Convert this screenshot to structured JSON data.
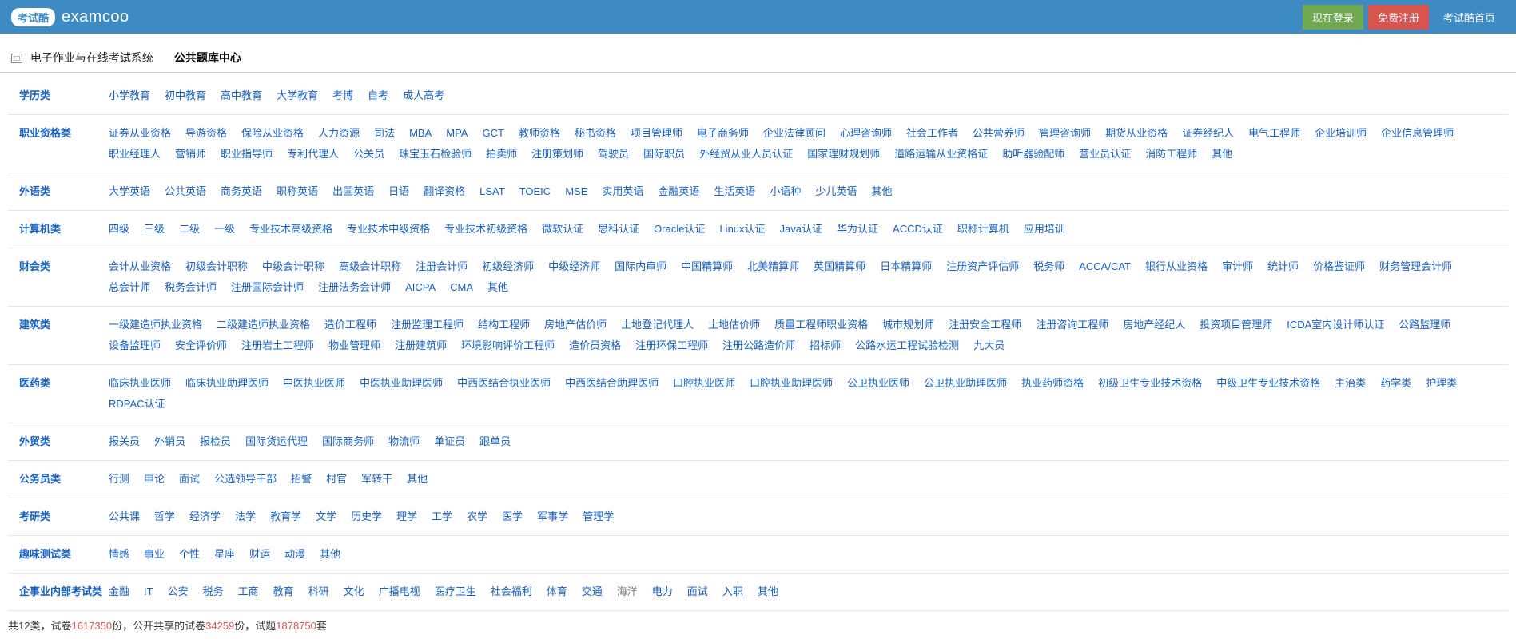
{
  "header": {
    "logo_badge": "考试酷",
    "logo_text": "examcoo",
    "login": "现在登录",
    "register": "免费注册",
    "home": "考试酷首页"
  },
  "tabs": {
    "sys": "电子作业与在线考试系统",
    "center": "公共题库中心"
  },
  "categories": [
    {
      "name": "学历类",
      "items": [
        "小学教育",
        "初中教育",
        "高中教育",
        "大学教育",
        "考博",
        "自考",
        "成人高考"
      ]
    },
    {
      "name": "职业资格类",
      "items": [
        "证券从业资格",
        "导游资格",
        "保险从业资格",
        "人力资源",
        "司法",
        "MBA",
        "MPA",
        "GCT",
        "教师资格",
        "秘书资格",
        "项目管理师",
        "电子商务师",
        "企业法律顾问",
        "心理咨询师",
        "社会工作者",
        "公共营养师",
        "管理咨询师",
        "期货从业资格",
        "证券经纪人",
        "电气工程师",
        "企业培训师",
        "企业信息管理师",
        "职业经理人",
        "营销师",
        "职业指导师",
        "专利代理人",
        "公关员",
        "珠宝玉石检验师",
        "拍卖师",
        "注册策划师",
        "驾驶员",
        "国际职员",
        "外经贸从业人员认证",
        "国家理财规划师",
        "道路运输从业资格证",
        "助听器验配师",
        "营业员认证",
        "消防工程师",
        "其他"
      ]
    },
    {
      "name": "外语类",
      "items": [
        "大学英语",
        "公共英语",
        "商务英语",
        "职称英语",
        "出国英语",
        "日语",
        "翻译资格",
        "LSAT",
        "TOEIC",
        "MSE",
        "实用英语",
        "金融英语",
        "生活英语",
        "小语种",
        "少儿英语",
        "其他"
      ]
    },
    {
      "name": "计算机类",
      "items": [
        "四级",
        "三级",
        "二级",
        "一级",
        "专业技术高级资格",
        "专业技术中级资格",
        "专业技术初级资格",
        "微软认证",
        "思科认证",
        "Oracle认证",
        "Linux认证",
        "Java认证",
        "华为认证",
        "ACCD认证",
        "职称计算机",
        "应用培训"
      ]
    },
    {
      "name": "财会类",
      "items": [
        "会计从业资格",
        "初级会计职称",
        "中级会计职称",
        "高级会计职称",
        "注册会计师",
        "初级经济师",
        "中级经济师",
        "国际内审师",
        "中国精算师",
        "北美精算师",
        "英国精算师",
        "日本精算师",
        "注册资产评估师",
        "税务师",
        "ACCA/CAT",
        "银行从业资格",
        "审计师",
        "统计师",
        "价格鉴证师",
        "财务管理会计师",
        "总会计师",
        "税务会计师",
        "注册国际会计师",
        "注册法务会计师",
        "AICPA",
        "CMA",
        "其他"
      ]
    },
    {
      "name": "建筑类",
      "items": [
        "一级建造师执业资格",
        "二级建造师执业资格",
        "造价工程师",
        "注册监理工程师",
        "结构工程师",
        "房地产估价师",
        "土地登记代理人",
        "土地估价师",
        "质量工程师职业资格",
        "城市规划师",
        "注册安全工程师",
        "注册咨询工程师",
        "房地产经纪人",
        "投资项目管理师",
        "ICDA室内设计师认证",
        "公路监理师",
        "设备监理师",
        "安全评价师",
        "注册岩土工程师",
        "物业管理师",
        "注册建筑师",
        "环境影响评价工程师",
        "造价员资格",
        "注册环保工程师",
        "注册公路造价师",
        "招标师",
        "公路水运工程试验检测",
        "九大员"
      ]
    },
    {
      "name": "医药类",
      "items": [
        "临床执业医师",
        "临床执业助理医师",
        "中医执业医师",
        "中医执业助理医师",
        "中西医结合执业医师",
        "中西医结合助理医师",
        "口腔执业医师",
        "口腔执业助理医师",
        "公卫执业医师",
        "公卫执业助理医师",
        "执业药师资格",
        "初级卫生专业技术资格",
        "中级卫生专业技术资格",
        "主治类",
        "药学类",
        "护理类",
        "RDPAC认证"
      ]
    },
    {
      "name": "外贸类",
      "items": [
        "报关员",
        "外销员",
        "报检员",
        "国际货运代理",
        "国际商务师",
        "物流师",
        "单证员",
        "跟单员"
      ]
    },
    {
      "name": "公务员类",
      "items": [
        "行测",
        "申论",
        "面试",
        "公选领导干部",
        "招警",
        "村官",
        "军转干",
        "其他"
      ]
    },
    {
      "name": "考研类",
      "items": [
        "公共课",
        "哲学",
        "经济学",
        "法学",
        "教育学",
        "文学",
        "历史学",
        "理学",
        "工学",
        "农学",
        "医学",
        "军事学",
        "管理学"
      ]
    },
    {
      "name": "趣味测试类",
      "items": [
        "情感",
        "事业",
        "个性",
        "星座",
        "财运",
        "动漫",
        "其他"
      ]
    },
    {
      "name": "企事业内部考试类",
      "items": [
        "金融",
        "IT",
        "公安",
        "税务",
        "工商",
        "教育",
        "科研",
        "文化",
        "广播电视",
        "医疗卫生",
        "社会福利",
        "体育",
        "交通",
        "海洋",
        "电力",
        "面试",
        "入职",
        "其他"
      ],
      "dim": [
        "海洋"
      ]
    }
  ],
  "footer": {
    "p1": "共12类，试卷",
    "n1": "1617350",
    "p2": "份，公开共享的试卷",
    "n2": "34259",
    "p3": "份，试题",
    "n3": "1878750",
    "p4": "套"
  }
}
